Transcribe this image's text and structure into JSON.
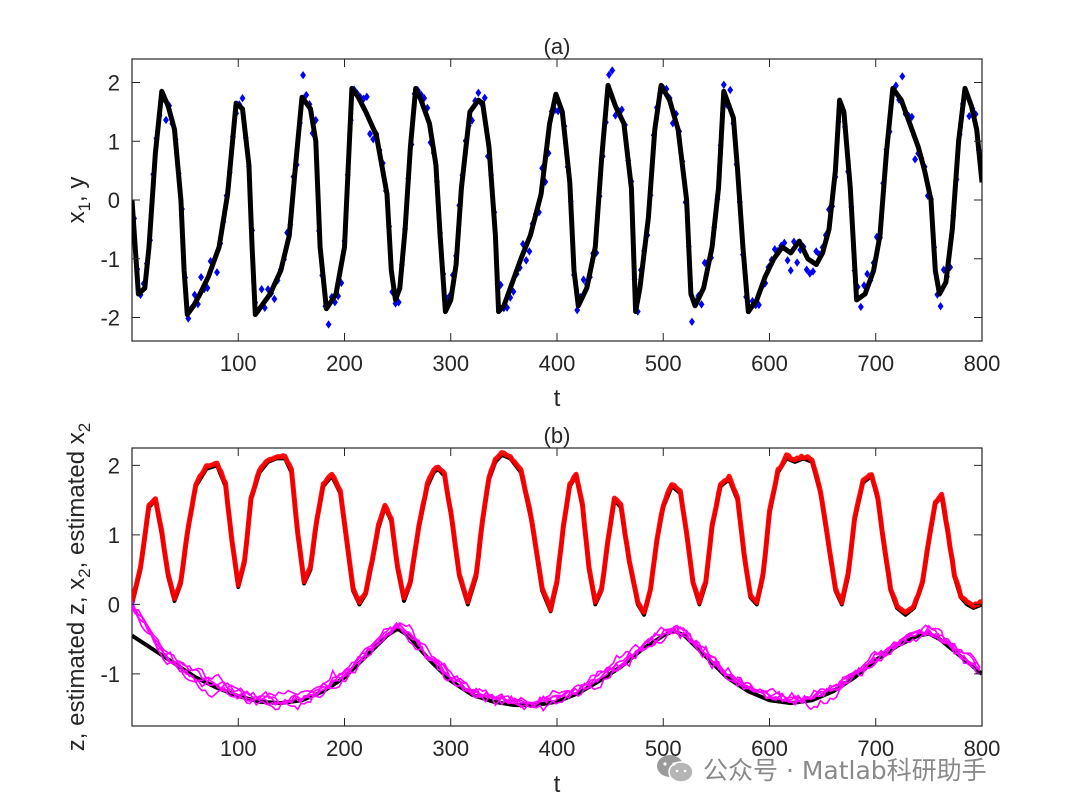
{
  "watermark": {
    "text": "公众号 · Matlab科研助手",
    "icon": "wechat-icon"
  },
  "colors": {
    "axis": "#262626",
    "true_state": "#000000",
    "observations": "#0000ff",
    "estimate_x2": "#ff0000",
    "estimate_z": "#ff00ff"
  },
  "chart_data": [
    {
      "type": "line",
      "title": "(a)",
      "xlabel": "t",
      "ylabel": {
        "base": "x",
        "sub": "1",
        "rest": ", y"
      },
      "xlim": [
        0,
        800
      ],
      "ylim": [
        -2.4,
        2.4
      ],
      "xticks": [
        100,
        200,
        300,
        400,
        500,
        600,
        700,
        800
      ],
      "yticks": [
        -2,
        -1,
        0,
        1,
        2
      ],
      "grid": false,
      "series": [
        {
          "kind": "line",
          "color": "#000000",
          "x": [
            0,
            6,
            12,
            16,
            22,
            28,
            34,
            40,
            46,
            49,
            52,
            58,
            64,
            72,
            82,
            90,
            98,
            104,
            110,
            113,
            116,
            122,
            130,
            140,
            148,
            154,
            160,
            168,
            173,
            177,
            183,
            192,
            200,
            207,
            213,
            220,
            230,
            240,
            244,
            248,
            252,
            257,
            262,
            267,
            272,
            280,
            286,
            290,
            295,
            300,
            305,
            310,
            318,
            326,
            330,
            336,
            342,
            345,
            350,
            358,
            366,
            375,
            385,
            393,
            399,
            405,
            412,
            416,
            420,
            428,
            436,
            442,
            448,
            455,
            463,
            470,
            474,
            478,
            486,
            492,
            498,
            506,
            514,
            522,
            526,
            530,
            538,
            546,
            552,
            557,
            562,
            566,
            570,
            575,
            580,
            588,
            596,
            604,
            612,
            620,
            628,
            636,
            644,
            650,
            656,
            662,
            666,
            670,
            676,
            682,
            690,
            698,
            704,
            710,
            716,
            724,
            732,
            740,
            746,
            752,
            756,
            760,
            766,
            772,
            778,
            784,
            790,
            795,
            800
          ],
          "y": [
            0.0,
            -1.6,
            -1.5,
            -0.8,
            0.8,
            1.85,
            1.6,
            1.2,
            0.0,
            -1.2,
            -1.95,
            -1.8,
            -1.6,
            -1.3,
            -0.8,
            0.1,
            1.65,
            1.55,
            0.6,
            -0.8,
            -1.95,
            -1.8,
            -1.6,
            -1.2,
            -0.6,
            0.6,
            1.75,
            1.55,
            1.0,
            -0.8,
            -1.85,
            -1.6,
            -0.8,
            1.9,
            1.75,
            1.5,
            1.1,
            0.1,
            -1.2,
            -1.7,
            -1.5,
            -0.5,
            0.9,
            1.9,
            1.7,
            1.3,
            0.6,
            -0.6,
            -1.9,
            -1.7,
            -1.1,
            0.2,
            1.5,
            1.7,
            1.65,
            0.9,
            -0.6,
            -1.9,
            -1.8,
            -1.4,
            -1.0,
            -0.6,
            0.1,
            1.3,
            1.8,
            1.5,
            0.3,
            -1.2,
            -1.8,
            -1.5,
            -0.8,
            0.7,
            1.95,
            1.6,
            1.3,
            0.2,
            -1.9,
            -1.5,
            -0.3,
            1.2,
            1.95,
            1.7,
            1.2,
            0.0,
            -1.6,
            -1.8,
            -1.5,
            -0.8,
            0.2,
            1.85,
            1.6,
            1.4,
            0.5,
            -0.8,
            -1.9,
            -1.7,
            -1.3,
            -1.0,
            -0.8,
            -0.9,
            -0.7,
            -1.0,
            -1.1,
            -0.9,
            -0.5,
            0.5,
            1.7,
            1.5,
            0.2,
            -1.7,
            -1.6,
            -1.2,
            -0.6,
            0.8,
            1.9,
            1.7,
            1.3,
            0.9,
            0.5,
            0.0,
            -1.2,
            -1.6,
            -1.4,
            -0.5,
            1.0,
            1.9,
            1.6,
            1.2,
            0.3
          ]
        },
        {
          "kind": "scatter",
          "marker": "diamond",
          "color": "#0000ff",
          "noise": 0.28,
          "stride": 3
        }
      ]
    },
    {
      "type": "line",
      "title": "(b)",
      "xlabel": "t",
      "ylabel": {
        "base": "z, estimated z, x",
        "sub": "2",
        "mid": ", x",
        "rest": ", estimated x",
        "sub2": "2"
      },
      "xlim": [
        0,
        800
      ],
      "ylim": [
        -1.75,
        2.25
      ],
      "xticks": [
        100,
        200,
        300,
        400,
        500,
        600,
        700,
        800
      ],
      "yticks": [
        -1,
        0,
        1,
        2
      ],
      "grid": false,
      "series": [
        {
          "kind": "line",
          "name_hint": "x2",
          "color": "#000000",
          "x": [
            0,
            8,
            16,
            22,
            28,
            34,
            40,
            46,
            52,
            60,
            70,
            80,
            88,
            94,
            100,
            106,
            112,
            120,
            128,
            136,
            144,
            150,
            156,
            162,
            168,
            174,
            180,
            188,
            196,
            202,
            208,
            214,
            220,
            226,
            232,
            238,
            244,
            250,
            256,
            262,
            270,
            278,
            284,
            288,
            294,
            300,
            308,
            316,
            324,
            330,
            336,
            342,
            348,
            356,
            366,
            376,
            386,
            394,
            400,
            406,
            412,
            418,
            424,
            430,
            436,
            442,
            448,
            454,
            460,
            468,
            476,
            482,
            488,
            494,
            500,
            508,
            516,
            522,
            528,
            534,
            540,
            546,
            554,
            562,
            570,
            576,
            582,
            588,
            594,
            600,
            608,
            616,
            624,
            632,
            640,
            648,
            656,
            662,
            668,
            674,
            680,
            688,
            696,
            702,
            708,
            714,
            720,
            728,
            736,
            744,
            750,
            756,
            762,
            768,
            774,
            780,
            786,
            792,
            800
          ],
          "y": [
            0.0,
            0.5,
            1.4,
            1.5,
            1.0,
            0.4,
            0.05,
            0.3,
            1.0,
            1.7,
            1.95,
            2.0,
            1.7,
            0.9,
            0.25,
            0.6,
            1.5,
            1.9,
            2.05,
            2.1,
            2.1,
            1.9,
            1.0,
            0.3,
            0.5,
            1.2,
            1.7,
            1.85,
            1.6,
            0.9,
            0.2,
            0.0,
            0.15,
            0.6,
            1.1,
            1.4,
            1.2,
            0.5,
            0.05,
            0.3,
            1.1,
            1.7,
            1.9,
            1.95,
            1.85,
            1.3,
            0.4,
            0.0,
            0.4,
            1.2,
            1.8,
            2.05,
            2.15,
            2.1,
            1.9,
            1.2,
            0.2,
            -0.1,
            0.3,
            1.1,
            1.7,
            1.85,
            1.4,
            0.5,
            0.0,
            0.2,
            0.9,
            1.5,
            1.4,
            0.6,
            0.0,
            -0.15,
            0.2,
            0.9,
            1.4,
            1.7,
            1.6,
            1.0,
            0.3,
            0.0,
            0.3,
            1.1,
            1.7,
            1.8,
            1.5,
            0.7,
            0.1,
            0.0,
            0.4,
            1.3,
            1.9,
            2.1,
            2.05,
            2.1,
            2.05,
            1.6,
            0.8,
            0.2,
            0.0,
            0.4,
            1.2,
            1.75,
            1.85,
            1.5,
            0.8,
            0.2,
            -0.05,
            -0.15,
            -0.05,
            0.3,
            0.9,
            1.45,
            1.55,
            1.0,
            0.4,
            0.1,
            0.0,
            -0.05,
            0.0
          ]
        },
        {
          "kind": "line",
          "name_hint": "estimated x2",
          "color": "#ff0000",
          "follows": 0,
          "offset": 0.03,
          "width": 5
        },
        {
          "kind": "line",
          "name_hint": "z",
          "color": "#000000",
          "x": [
            0,
            20,
            40,
            60,
            80,
            100,
            120,
            140,
            160,
            180,
            200,
            220,
            240,
            250,
            260,
            280,
            300,
            320,
            340,
            360,
            380,
            400,
            420,
            440,
            460,
            480,
            500,
            510,
            520,
            540,
            560,
            580,
            600,
            620,
            640,
            660,
            680,
            700,
            720,
            740,
            750,
            760,
            780,
            800
          ],
          "y": [
            -0.45,
            -0.65,
            -0.85,
            -1.05,
            -1.2,
            -1.32,
            -1.4,
            -1.42,
            -1.38,
            -1.25,
            -1.05,
            -0.75,
            -0.45,
            -0.35,
            -0.45,
            -0.8,
            -1.1,
            -1.3,
            -1.4,
            -1.45,
            -1.45,
            -1.4,
            -1.28,
            -1.1,
            -0.9,
            -0.65,
            -0.45,
            -0.38,
            -0.45,
            -0.75,
            -1.05,
            -1.25,
            -1.38,
            -1.42,
            -1.38,
            -1.25,
            -1.05,
            -0.8,
            -0.6,
            -0.45,
            -0.42,
            -0.5,
            -0.75,
            -1.0
          ]
        },
        {
          "kind": "band",
          "name_hint": "estimated z",
          "color": "#ff00ff",
          "follows": 2,
          "count": 5,
          "noise": 0.12
        }
      ]
    }
  ]
}
